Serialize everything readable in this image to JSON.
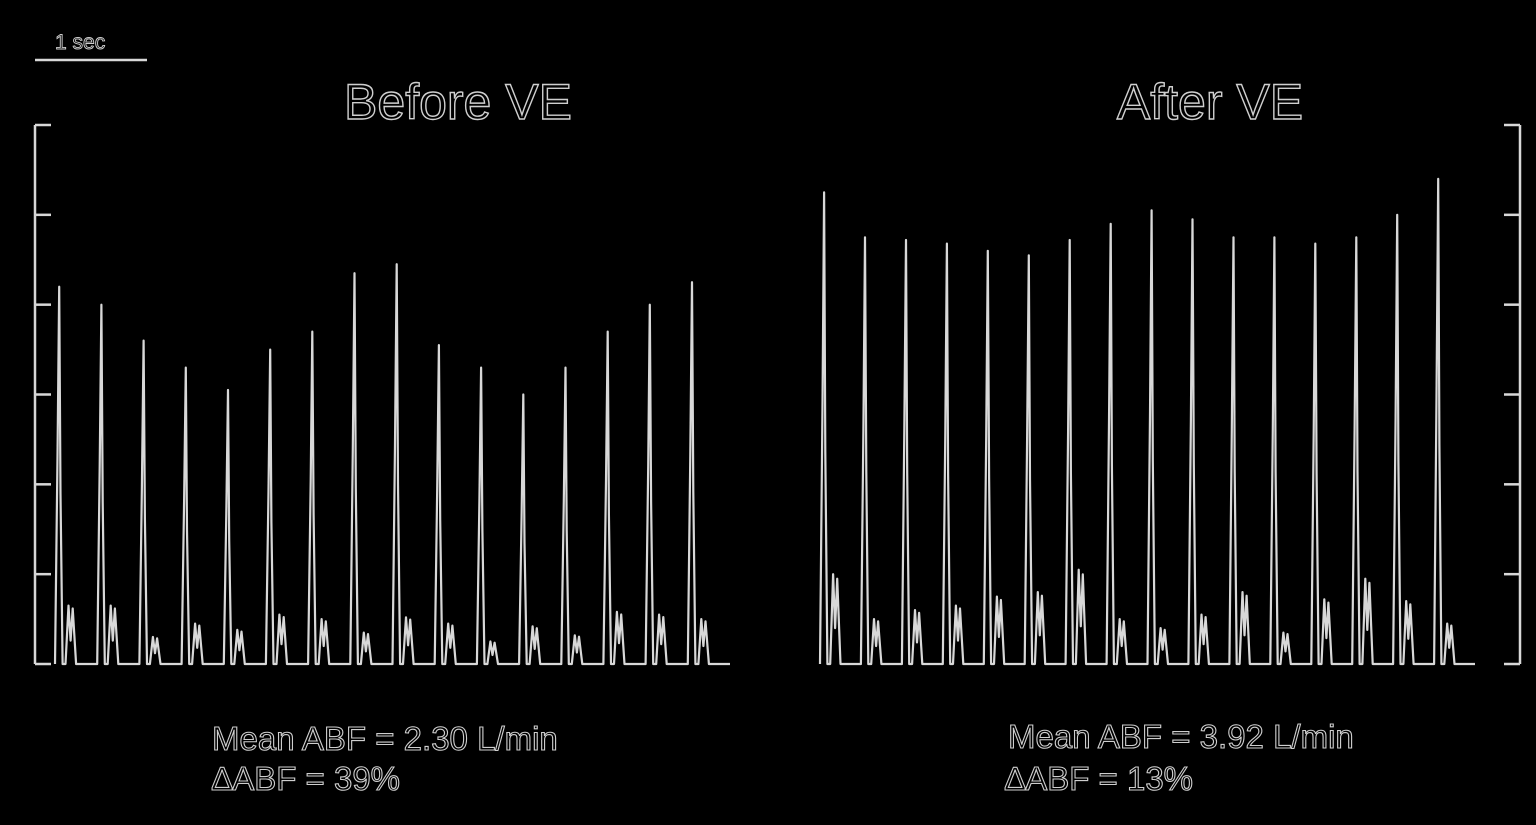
{
  "scale_bar": {
    "label": "1 sec"
  },
  "chart_data": [
    {
      "type": "line",
      "title": "Before VE",
      "xlabel": "",
      "ylabel": "",
      "ylim": [
        0,
        6
      ],
      "y_ticks": 6,
      "axis_side": "left",
      "grid": false,
      "peaks": [
        4.2,
        4.0,
        3.6,
        3.3,
        3.05,
        3.5,
        3.7,
        4.35,
        4.45,
        3.55,
        3.3,
        3.0,
        3.3,
        3.7,
        4.0,
        4.25
      ],
      "secondary_peaks": [
        0.65,
        0.65,
        0.3,
        0.45,
        0.38,
        0.55,
        0.5,
        0.35,
        0.52,
        0.45,
        0.25,
        0.42,
        0.32,
        0.58,
        0.55,
        0.5
      ],
      "annotations": {
        "mean": "Mean ABF  = 2.30 L/min",
        "delta": "∆ABF = 39%"
      }
    },
    {
      "type": "line",
      "title": "After VE",
      "xlabel": "",
      "ylabel": "",
      "ylim": [
        0,
        6
      ],
      "y_ticks": 6,
      "axis_side": "right",
      "grid": false,
      "peaks": [
        5.25,
        4.75,
        4.72,
        4.68,
        4.6,
        4.55,
        4.72,
        4.9,
        5.05,
        4.95,
        4.75,
        4.75,
        4.68,
        4.75,
        5.0,
        5.4
      ],
      "secondary_peaks": [
        1.0,
        0.5,
        0.6,
        0.65,
        0.75,
        0.8,
        1.05,
        0.5,
        0.4,
        0.55,
        0.8,
        0.35,
        0.72,
        0.95,
        0.7,
        0.45
      ],
      "annotations": {
        "mean": "Mean ABF  = 3.92 L/min",
        "delta": "∆ABF = 13%"
      }
    }
  ]
}
